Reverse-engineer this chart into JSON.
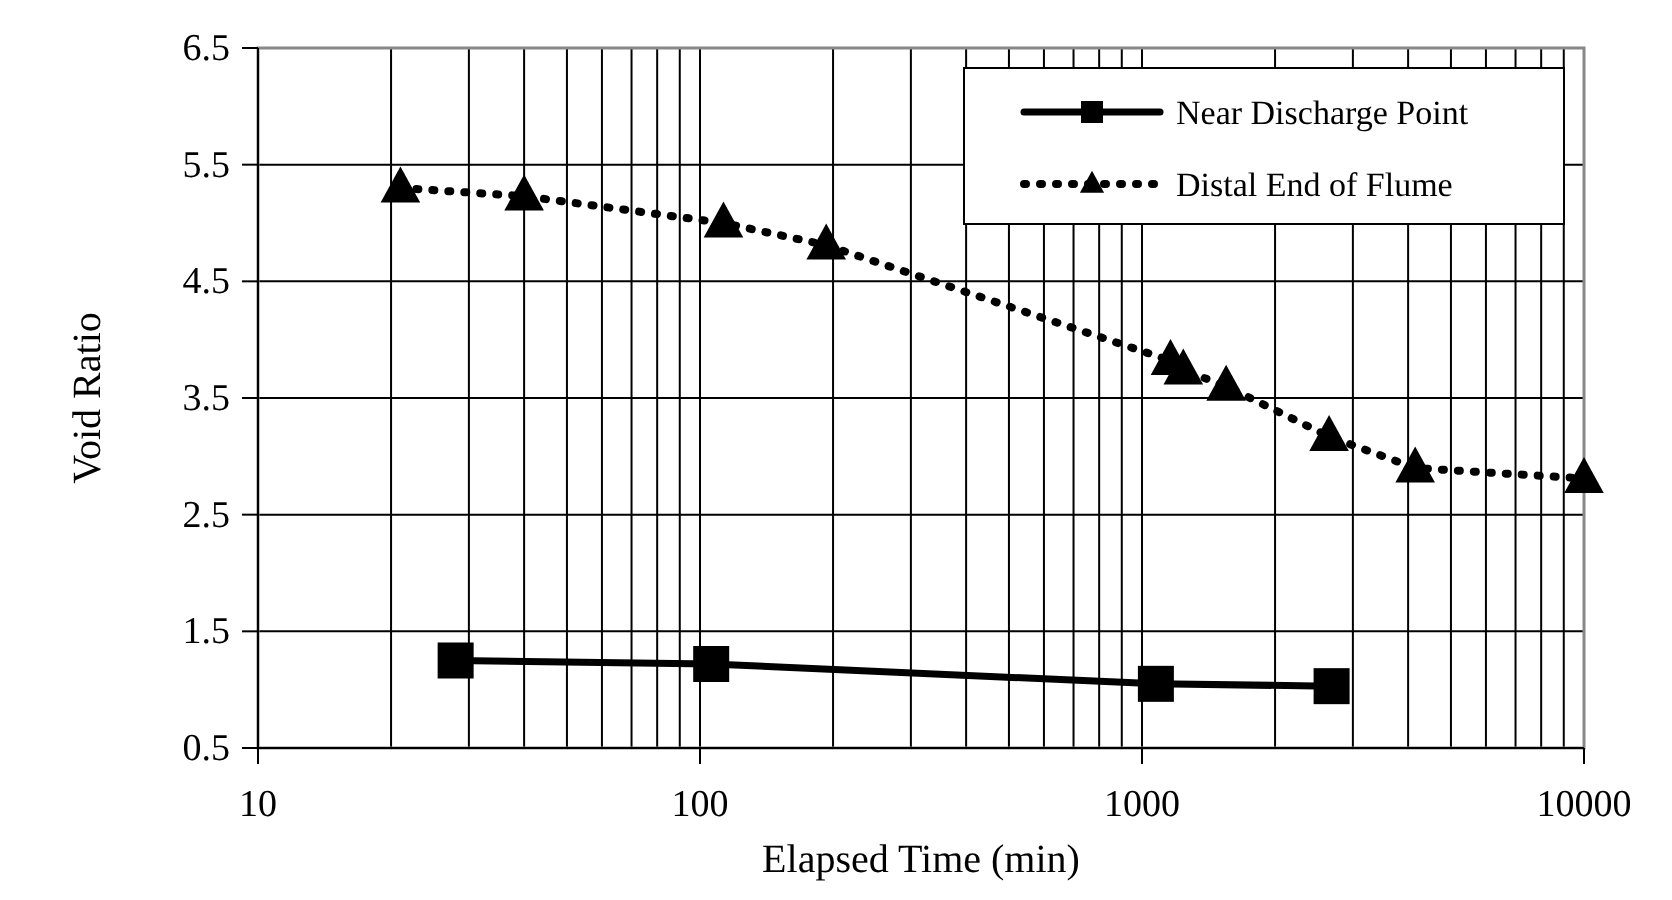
{
  "chart_data": {
    "type": "line",
    "xlabel": "Elapsed Time (min)",
    "ylabel": "Void Ratio",
    "log": "x",
    "xlim": [
      10,
      10000
    ],
    "xticks": [
      10,
      100,
      1000,
      10000
    ],
    "ylim": [
      0.5,
      6.5
    ],
    "yticks": [
      0.5,
      1.5,
      2.5,
      3.5,
      4.5,
      5.5,
      6.5
    ],
    "grid": true,
    "legend": "top right",
    "series": [
      {
        "name": "Near Discharge Point",
        "color": "#000000",
        "marker": "square",
        "line_style": "solid",
        "x": [
          28,
          106,
          1075,
          2685
        ],
        "values": [
          1.25,
          1.22,
          1.05,
          1.03
        ]
      },
      {
        "name": "Distal End of Flume",
        "color": "#000000",
        "marker": "triangle",
        "line_style": "dotted",
        "x": [
          21,
          40,
          113,
          193,
          1160,
          1240,
          1550,
          2650,
          4150,
          10000
        ],
        "values": [
          5.3,
          5.23,
          5.0,
          4.81,
          3.82,
          3.74,
          3.6,
          3.17,
          2.9,
          2.81
        ]
      }
    ]
  }
}
